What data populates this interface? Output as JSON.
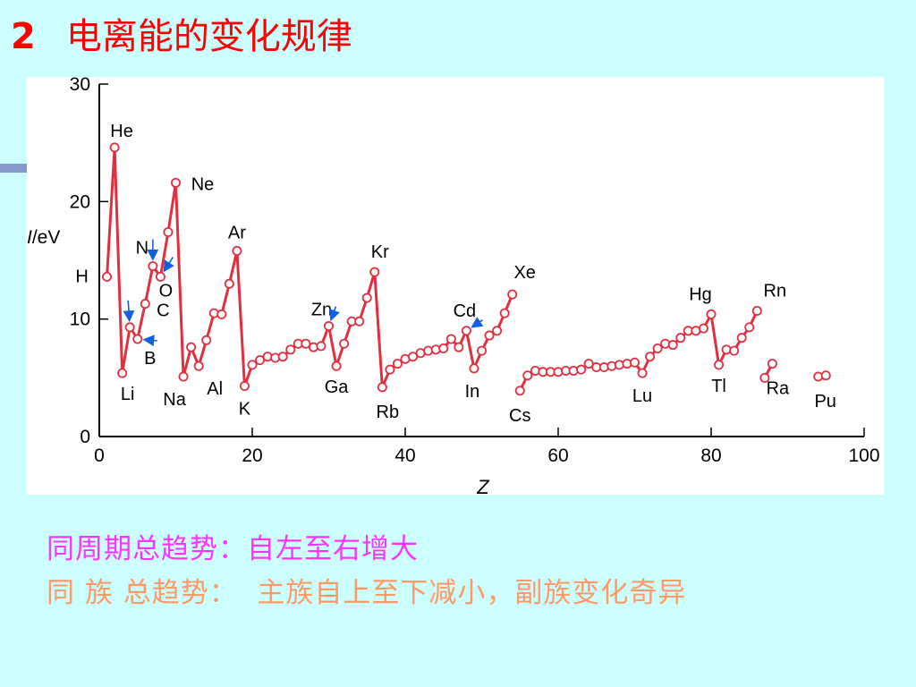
{
  "slide": {
    "number": "2",
    "title": "电离能的变化规律",
    "notes": [
      "同周期总趋势：自左至右增大",
      "同 族 总趋势：  主族自上至下减小，副族变化奇异"
    ]
  },
  "colors": {
    "background": "#ccffff",
    "series": "#e03040",
    "arrow": "#1060e0",
    "note_period": "#ff33ff",
    "note_group": "#ff9966",
    "title": "#ff0000"
  },
  "chart_data": {
    "type": "line",
    "ylabel_italic": "I",
    "ylabel_rest": "/eV",
    "xlabel": "Z",
    "xlim": [
      0,
      100
    ],
    "ylim": [
      0,
      30
    ],
    "xticks": [
      0,
      20,
      40,
      60,
      80,
      100
    ],
    "yticks": [
      0,
      10,
      20,
      30
    ],
    "grid": false,
    "segments": [
      {
        "x": [
          1,
          2,
          3,
          4,
          5,
          6,
          7,
          8,
          9,
          10,
          11,
          12,
          13,
          14,
          15,
          16,
          17,
          18,
          19,
          20,
          21,
          22,
          23,
          24,
          25,
          26,
          27,
          28,
          29,
          30,
          31,
          32,
          33,
          34,
          35,
          36,
          37,
          38,
          39,
          40,
          41,
          42,
          43,
          44,
          45,
          46,
          47,
          48,
          49,
          50,
          51,
          52,
          53,
          54
        ],
        "y": [
          13.6,
          24.6,
          5.4,
          9.3,
          8.3,
          11.3,
          14.5,
          13.6,
          17.4,
          21.6,
          5.1,
          7.6,
          6.0,
          8.2,
          10.5,
          10.4,
          13.0,
          15.8,
          4.3,
          6.1,
          6.5,
          6.8,
          6.7,
          6.8,
          7.4,
          7.9,
          7.9,
          7.6,
          7.7,
          9.4,
          6.0,
          7.9,
          9.8,
          9.8,
          11.8,
          14.0,
          4.2,
          5.7,
          6.2,
          6.6,
          6.8,
          7.1,
          7.3,
          7.4,
          7.5,
          8.3,
          7.6,
          9.0,
          5.8,
          7.3,
          8.6,
          9.0,
          10.5,
          12.1
        ]
      },
      {
        "x": [
          55,
          56,
          57,
          58,
          59,
          60,
          61,
          62,
          63,
          64,
          65,
          66,
          67,
          68,
          69,
          70,
          71,
          72,
          73,
          74,
          75,
          76,
          77,
          78,
          79,
          80,
          81,
          82,
          83,
          84,
          85,
          86
        ],
        "y": [
          3.9,
          5.2,
          5.6,
          5.5,
          5.5,
          5.5,
          5.6,
          5.6,
          5.7,
          6.2,
          5.9,
          5.9,
          6.0,
          6.1,
          6.2,
          6.3,
          5.4,
          6.8,
          7.5,
          7.9,
          7.8,
          8.4,
          9.0,
          9.0,
          9.2,
          10.4,
          6.1,
          7.4,
          7.3,
          8.4,
          9.3,
          10.7
        ]
      },
      {
        "x": [
          87,
          88
        ],
        "y": [
          5.0,
          6.2
        ]
      },
      {
        "x": [
          94,
          95
        ],
        "y": [
          5.1,
          5.2
        ]
      }
    ],
    "element_labels": [
      {
        "symbol": "H",
        "z": 1
      },
      {
        "symbol": "He",
        "z": 2
      },
      {
        "symbol": "Li",
        "z": 3
      },
      {
        "symbol": "B",
        "z": 5
      },
      {
        "symbol": "C",
        "z": 6
      },
      {
        "symbol": "N",
        "z": 7
      },
      {
        "symbol": "O",
        "z": 8
      },
      {
        "symbol": "Ne",
        "z": 10
      },
      {
        "symbol": "Na",
        "z": 11
      },
      {
        "symbol": "Al",
        "z": 13
      },
      {
        "symbol": "Ar",
        "z": 18
      },
      {
        "symbol": "K",
        "z": 19
      },
      {
        "symbol": "Zn",
        "z": 30
      },
      {
        "symbol": "Ga",
        "z": 31
      },
      {
        "symbol": "Kr",
        "z": 36
      },
      {
        "symbol": "Rb",
        "z": 37
      },
      {
        "symbol": "Cd",
        "z": 48
      },
      {
        "symbol": "In",
        "z": 49
      },
      {
        "symbol": "Xe",
        "z": 54
      },
      {
        "symbol": "Cs",
        "z": 55
      },
      {
        "symbol": "Lu",
        "z": 71
      },
      {
        "symbol": "Hg",
        "z": 80
      },
      {
        "symbol": "Tl",
        "z": 81
      },
      {
        "symbol": "Rn",
        "z": 86
      },
      {
        "symbol": "Ra",
        "z": 88
      },
      {
        "symbol": "Pu",
        "z": 94
      }
    ],
    "arrow_targets": [
      4,
      5,
      7,
      8,
      30,
      48
    ]
  }
}
